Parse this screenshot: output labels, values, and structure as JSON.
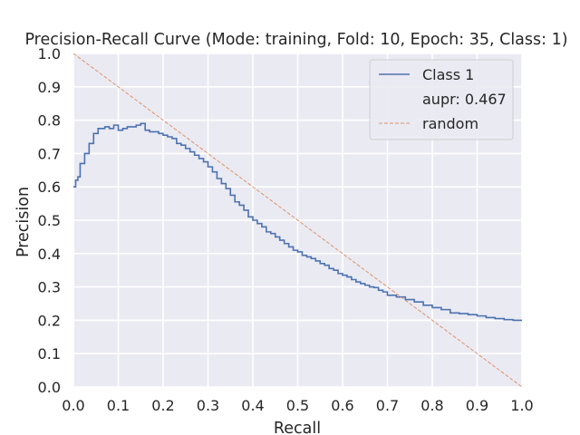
{
  "chart_data": {
    "type": "line",
    "title": "Precision-Recall Curve (Mode: training, Fold: 10, Epoch: 35, Class: 1)",
    "xlabel": "Recall",
    "ylabel": "Precision",
    "xlim": [
      0.0,
      1.0
    ],
    "ylim": [
      0.0,
      1.0
    ],
    "xticks": [
      "0.0",
      "0.1",
      "0.2",
      "0.3",
      "0.4",
      "0.5",
      "0.6",
      "0.7",
      "0.8",
      "0.9",
      "1.0"
    ],
    "yticks": [
      "0.0",
      "0.1",
      "0.2",
      "0.3",
      "0.4",
      "0.5",
      "0.6",
      "0.7",
      "0.8",
      "0.9",
      "1.0"
    ],
    "grid": true,
    "background": "#eaeaf2",
    "legend_position": "top-right",
    "legend_extra_text": "aupr: 0.467",
    "series": [
      {
        "name": "Class 1",
        "color": "#4c72b0",
        "style": "step",
        "x": [
          0.0,
          0.005,
          0.01,
          0.015,
          0.02,
          0.025,
          0.03,
          0.035,
          0.04,
          0.045,
          0.05,
          0.055,
          0.06,
          0.07,
          0.08,
          0.09,
          0.1,
          0.11,
          0.12,
          0.13,
          0.14,
          0.15,
          0.16,
          0.17,
          0.18,
          0.19,
          0.2,
          0.21,
          0.22,
          0.23,
          0.24,
          0.25,
          0.26,
          0.27,
          0.28,
          0.29,
          0.3,
          0.31,
          0.32,
          0.33,
          0.34,
          0.35,
          0.36,
          0.37,
          0.38,
          0.39,
          0.4,
          0.41,
          0.42,
          0.43,
          0.44,
          0.45,
          0.46,
          0.47,
          0.48,
          0.49,
          0.5,
          0.51,
          0.52,
          0.53,
          0.54,
          0.55,
          0.56,
          0.57,
          0.58,
          0.59,
          0.6,
          0.61,
          0.62,
          0.63,
          0.64,
          0.65,
          0.66,
          0.67,
          0.68,
          0.69,
          0.7,
          0.72,
          0.74,
          0.76,
          0.78,
          0.8,
          0.82,
          0.84,
          0.86,
          0.88,
          0.9,
          0.92,
          0.94,
          0.96,
          0.98,
          1.0
        ],
        "y": [
          0.6,
          0.62,
          0.63,
          0.67,
          0.67,
          0.7,
          0.7,
          0.73,
          0.73,
          0.76,
          0.76,
          0.775,
          0.775,
          0.78,
          0.775,
          0.785,
          0.77,
          0.775,
          0.78,
          0.78,
          0.785,
          0.79,
          0.77,
          0.765,
          0.765,
          0.76,
          0.755,
          0.75,
          0.745,
          0.73,
          0.725,
          0.715,
          0.705,
          0.695,
          0.685,
          0.675,
          0.66,
          0.645,
          0.625,
          0.61,
          0.595,
          0.575,
          0.555,
          0.545,
          0.53,
          0.51,
          0.5,
          0.49,
          0.48,
          0.465,
          0.46,
          0.45,
          0.44,
          0.43,
          0.42,
          0.41,
          0.405,
          0.395,
          0.39,
          0.385,
          0.378,
          0.37,
          0.365,
          0.355,
          0.35,
          0.34,
          0.335,
          0.33,
          0.322,
          0.315,
          0.31,
          0.305,
          0.3,
          0.298,
          0.29,
          0.285,
          0.275,
          0.27,
          0.262,
          0.255,
          0.245,
          0.238,
          0.232,
          0.222,
          0.22,
          0.217,
          0.213,
          0.208,
          0.205,
          0.202,
          0.2,
          0.2
        ]
      },
      {
        "name": "random",
        "color": "#dd8452",
        "style": "dashed",
        "x": [
          0.0,
          1.0
        ],
        "y": [
          1.0,
          0.0
        ]
      }
    ]
  }
}
